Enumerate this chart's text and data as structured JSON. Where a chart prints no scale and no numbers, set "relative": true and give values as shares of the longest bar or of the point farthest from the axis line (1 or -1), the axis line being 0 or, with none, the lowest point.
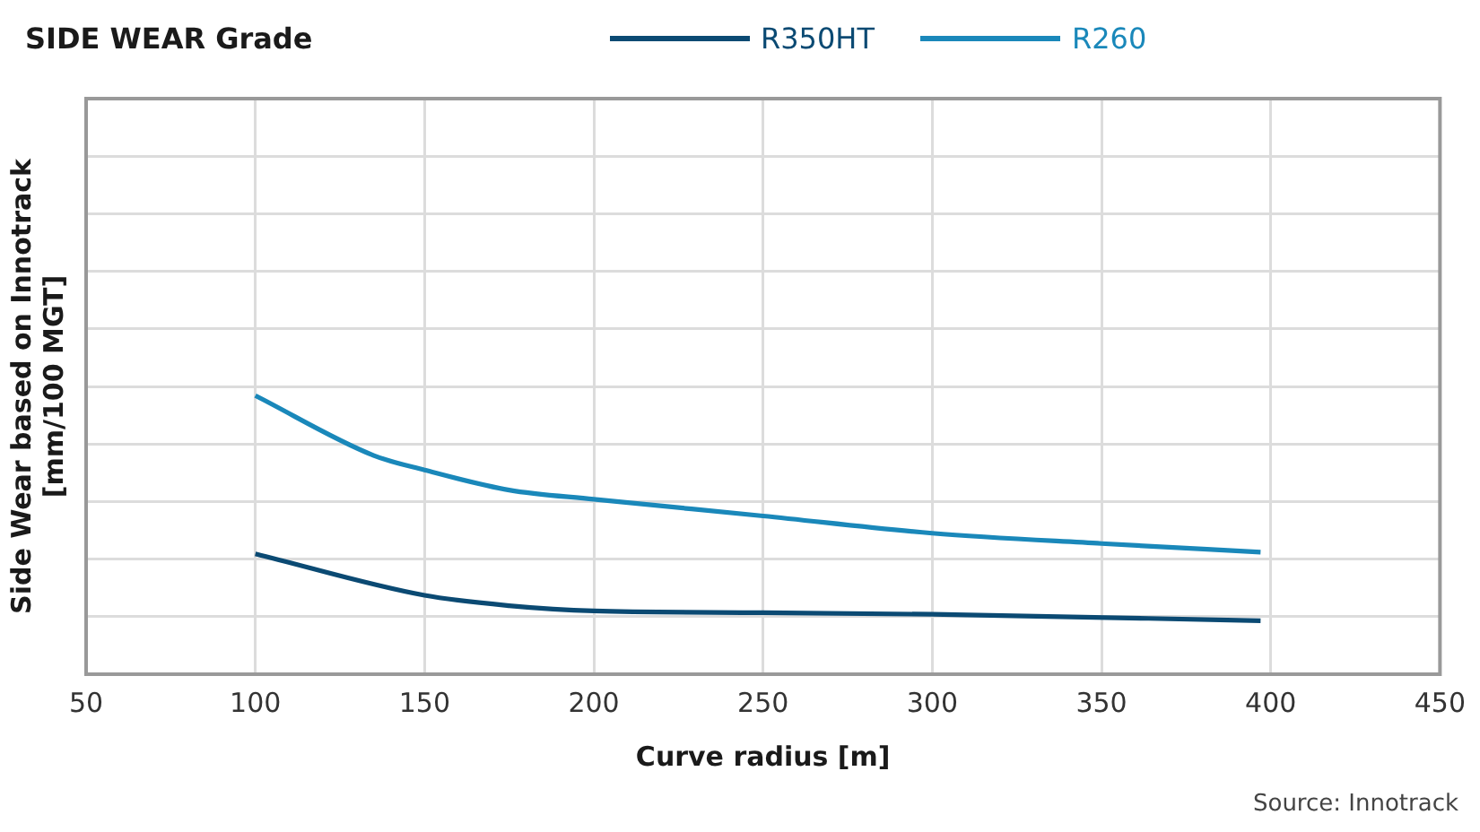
{
  "chart_data": {
    "type": "line",
    "title": "SIDE WEAR Grade",
    "xlabel": "Curve radius [m]",
    "ylabel": "Side Wear based on Innotrack\n[mm/100 MGT]",
    "annotations": [
      "Source: Innotrack"
    ],
    "relative": true,
    "xlim": [
      50,
      450
    ],
    "xticks": [
      50,
      100,
      150,
      200,
      250,
      300,
      350,
      400,
      450
    ],
    "series": [
      {
        "name": "R350HT",
        "color": "#0b4a73",
        "x": [
          100,
          150,
          175,
          200,
          250,
          300,
          397
        ],
        "values": [
          0.432,
          0.283,
          0.246,
          0.227,
          0.221,
          0.215,
          0.192
        ]
      },
      {
        "name": "R260",
        "color": "#1a88ba",
        "x": [
          100,
          135,
          150,
          175,
          200,
          250,
          300,
          350,
          397
        ],
        "values": [
          1,
          0.785,
          0.733,
          0.661,
          0.628,
          0.568,
          0.506,
          0.469,
          0.438
        ]
      }
    ],
    "grid": true,
    "legend": "top",
    "marker": "none",
    "line_style": "solid"
  }
}
